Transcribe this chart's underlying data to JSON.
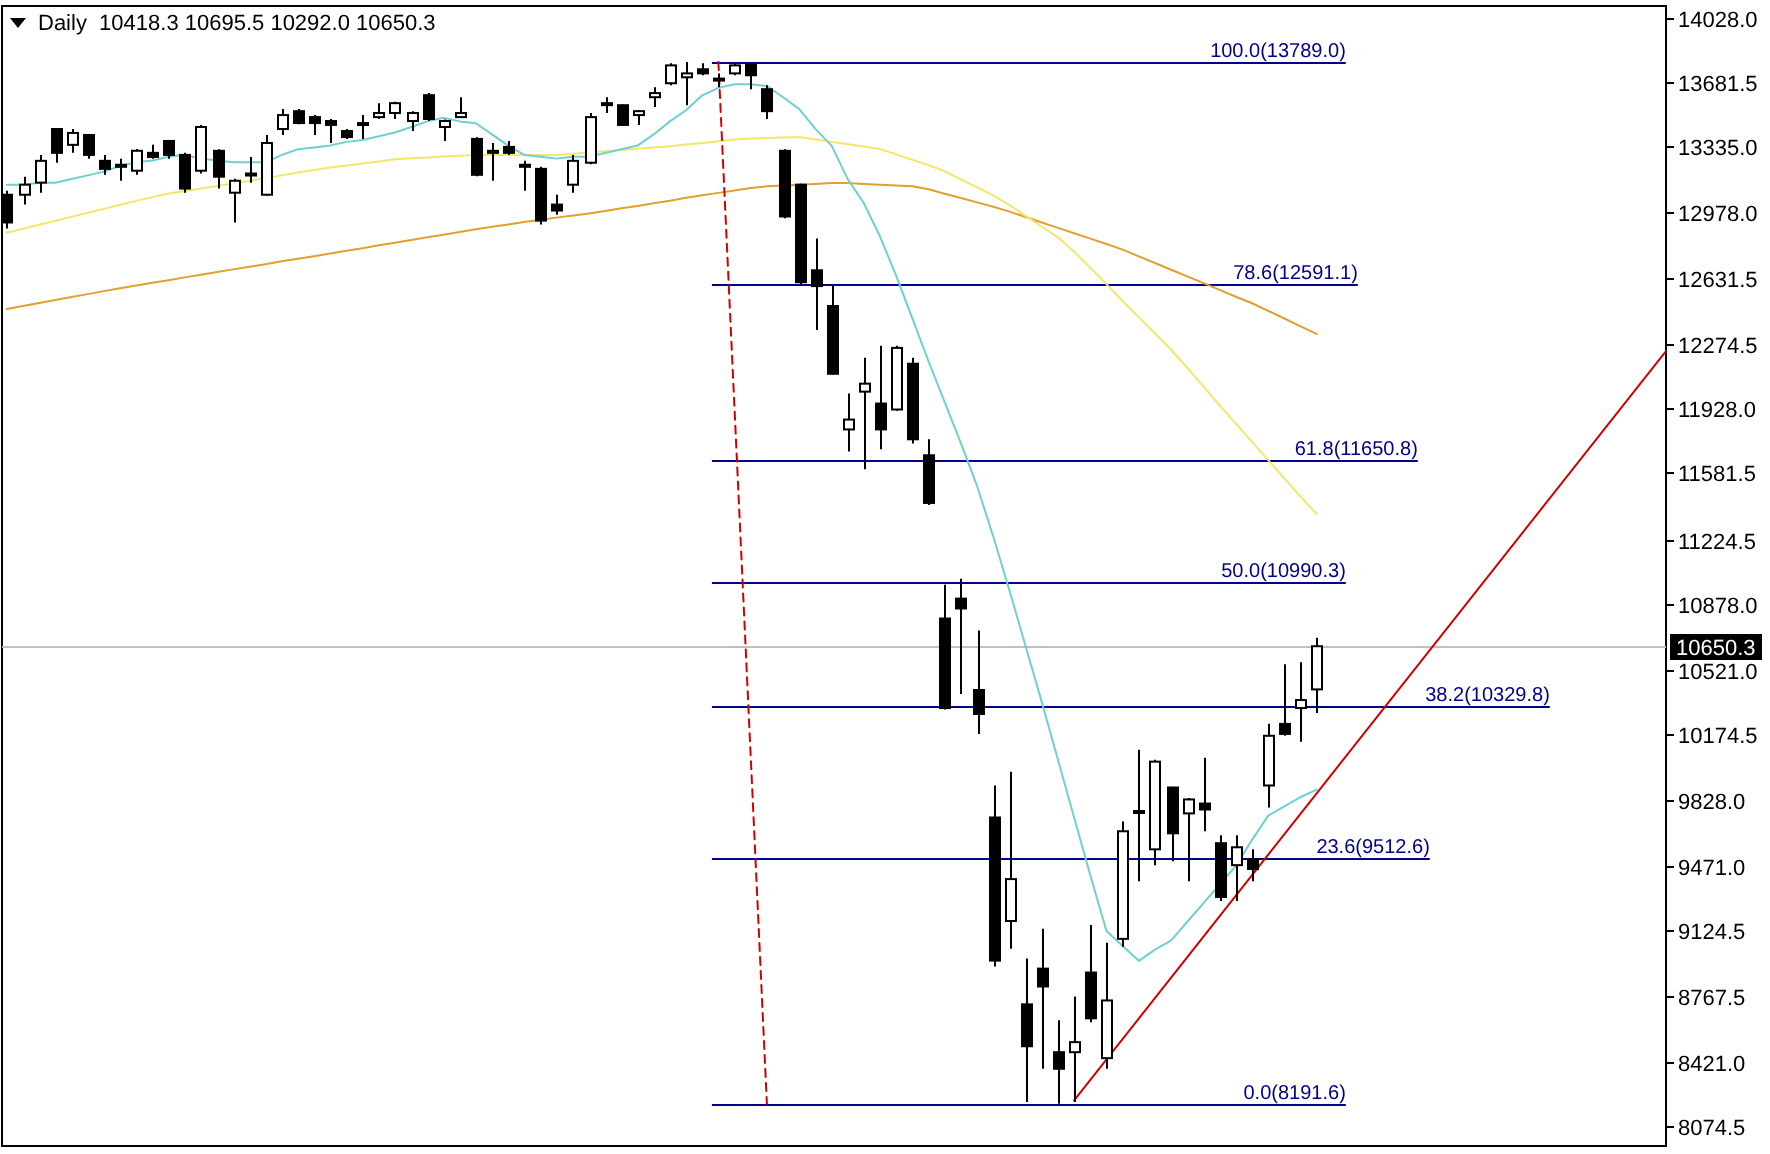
{
  "chart_data": {
    "type": "candlestick",
    "title": "Daily  10418.3 10695.5 10292.0 10650.3",
    "tick_labels": "y",
    "categories": [
      null,
      null,
      null,
      null,
      null,
      null,
      null,
      null,
      null,
      null,
      null,
      null,
      null,
      null,
      null,
      null,
      null,
      null,
      null,
      null,
      null,
      null,
      null,
      null,
      null,
      null,
      null,
      null,
      null,
      null,
      null,
      null,
      null,
      null,
      null,
      null,
      null,
      null,
      null,
      null,
      null,
      null,
      null,
      null,
      null,
      null,
      null,
      null,
      null,
      null,
      null,
      null,
      null,
      null,
      null,
      null,
      null,
      null,
      null,
      null,
      null,
      null,
      null,
      null,
      null,
      null,
      null,
      null,
      null,
      null,
      null,
      null,
      null,
      null,
      null,
      null,
      null,
      null,
      null,
      null,
      null,
      null
    ],
    "ylim": [
      7965,
      14090
    ],
    "yticks": [
      {
        "value": 14028,
        "label": "14028.0"
      },
      {
        "value": 13681.5,
        "label": "13681.5"
      },
      {
        "value": 13335,
        "label": "13335.0"
      },
      {
        "value": 12978,
        "label": "12978.0"
      },
      {
        "value": 12631.5,
        "label": "12631.5"
      },
      {
        "value": 12274.5,
        "label": "12274.5"
      },
      {
        "value": 11928,
        "label": "11928.0"
      },
      {
        "value": 11581.5,
        "label": "11581.5"
      },
      {
        "value": 11224.5,
        "label": "11224.5"
      },
      {
        "value": 10878,
        "label": "10878.0"
      },
      {
        "value": 10521,
        "label": "10521.0"
      },
      {
        "value": 10174.5,
        "label": "10174.5"
      },
      {
        "value": 9828,
        "label": "9828.0"
      },
      {
        "value": 9471,
        "label": "9471.0"
      },
      {
        "value": 9124.5,
        "label": "9124.5"
      },
      {
        "value": 8767.5,
        "label": "8767.5"
      },
      {
        "value": 8421,
        "label": "8421.0"
      },
      {
        "value": 8074.5,
        "label": "8074.5"
      }
    ],
    "ohlc": [
      [
        13076,
        13098,
        12895,
        12927
      ],
      [
        13076,
        13173,
        13023,
        13130
      ],
      [
        13141,
        13290,
        13087,
        13258
      ],
      [
        13429,
        13429,
        13248,
        13301
      ],
      [
        13344,
        13429,
        13301,
        13408
      ],
      [
        13397,
        13397,
        13269,
        13290
      ],
      [
        13258,
        13290,
        13183,
        13215
      ],
      [
        13237,
        13269,
        13151,
        13226
      ],
      [
        13205,
        13322,
        13183,
        13312
      ],
      [
        13301,
        13344,
        13269,
        13279
      ],
      [
        13365,
        13365,
        13269,
        13290
      ],
      [
        13290,
        13301,
        13087,
        13109
      ],
      [
        13205,
        13450,
        13190,
        13440
      ],
      [
        13312,
        13320,
        13109,
        13173
      ],
      [
        13087,
        13162,
        12927,
        13151
      ],
      [
        13183,
        13279,
        13141,
        13190
      ],
      [
        13076,
        13397,
        13070,
        13354
      ],
      [
        13429,
        13536,
        13397,
        13504
      ],
      [
        13525,
        13536,
        13455,
        13461
      ],
      [
        13493,
        13504,
        13397,
        13461
      ],
      [
        13472,
        13483,
        13354,
        13451
      ],
      [
        13418,
        13429,
        13376,
        13386
      ],
      [
        13461,
        13504,
        13376,
        13451
      ],
      [
        13493,
        13568,
        13483,
        13515
      ],
      [
        13515,
        13575,
        13483,
        13568
      ],
      [
        13472,
        13525,
        13418,
        13515
      ],
      [
        13611,
        13622,
        13472,
        13483
      ],
      [
        13440,
        13480,
        13365,
        13472
      ],
      [
        13493,
        13600,
        13490,
        13515
      ],
      [
        13376,
        13385,
        13175,
        13183
      ],
      [
        13301,
        13354,
        13151,
        13312
      ],
      [
        13333,
        13365,
        13290,
        13301
      ],
      [
        13237,
        13258,
        13098,
        13226
      ],
      [
        13215,
        13226,
        12916,
        12937
      ],
      [
        13023,
        13076,
        12969,
        12991
      ],
      [
        13130,
        13290,
        13087,
        13258
      ],
      [
        13248,
        13515,
        13240,
        13493
      ],
      [
        13562,
        13600,
        13515,
        13568
      ],
      [
        13557,
        13560,
        13445,
        13451
      ],
      [
        13504,
        13530,
        13451,
        13525
      ],
      [
        13600,
        13654,
        13547,
        13622
      ],
      [
        13675,
        13782,
        13664,
        13771
      ],
      [
        13707,
        13789,
        13557,
        13728
      ],
      [
        13750,
        13782,
        13718,
        13728
      ],
      [
        13690,
        13728,
        13654,
        13700
      ],
      [
        13728,
        13780,
        13718,
        13771
      ],
      [
        13775,
        13780,
        13643,
        13718
      ],
      [
        13643,
        13664,
        13483,
        13525
      ],
      [
        13312,
        13320,
        12950,
        12959
      ],
      [
        13130,
        13135,
        12595,
        12606
      ],
      [
        12670,
        12841,
        12349,
        12585
      ],
      [
        12478,
        12585,
        12110,
        12114
      ],
      [
        11815,
        12008,
        11697,
        11868
      ],
      [
        12018,
        12200,
        11601,
        12061
      ],
      [
        11954,
        12264,
        11708,
        11815
      ],
      [
        11922,
        12264,
        11915,
        12253
      ],
      [
        12168,
        12200,
        11740,
        11762
      ],
      [
        11676,
        11762,
        11409,
        11420
      ],
      [
        10799,
        10981,
        10310,
        10318
      ],
      [
        10906,
        11013,
        10393,
        10853
      ],
      [
        10415,
        10735,
        10179,
        10286
      ],
      [
        9730,
        9902,
        8929,
        8961
      ],
      [
        9174,
        9976,
        9025,
        9399
      ],
      [
        8726,
        8972,
        8202,
        8501
      ],
      [
        8918,
        9132,
        8380,
        8822
      ],
      [
        8469,
        8640,
        8191.6,
        8380
      ],
      [
        8469,
        8768,
        8202,
        8523
      ],
      [
        8897,
        9153,
        8630,
        8651
      ],
      [
        8437,
        9057,
        8380,
        8747
      ],
      [
        9078,
        9709,
        9036,
        9656
      ],
      [
        9760,
        10094,
        9388,
        9765
      ],
      [
        9559,
        10040,
        9474,
        10030
      ],
      [
        9891,
        9895,
        9495,
        9645
      ],
      [
        9752,
        9835,
        9388,
        9827
      ],
      [
        9805,
        10051,
        9656,
        9773
      ],
      [
        9592,
        9634,
        9281,
        9303
      ],
      [
        9474,
        9634,
        9281,
        9570
      ],
      [
        9506,
        9559,
        9388,
        9453
      ],
      [
        9902,
        10233,
        9784,
        10169
      ],
      [
        10233,
        10553,
        10169,
        10179
      ],
      [
        10318,
        10564,
        10137,
        10361
      ],
      [
        10418.3,
        10695.5,
        10292,
        10650.3
      ]
    ],
    "series": [
      {
        "type": "line",
        "color": "#e0a030",
        "values": [
          12462,
          12478,
          12494,
          12510,
          12526,
          12542,
          12558,
          12574,
          12588,
          12603,
          12617,
          12632,
          12646,
          12661,
          12675,
          12689,
          12703,
          12718,
          12732,
          12746,
          12760,
          12775,
          12789,
          12804,
          12818,
          12833,
          12847,
          12861,
          12876,
          12890,
          12904,
          12916,
          12929,
          12941,
          12953,
          12965,
          12975,
          12989,
          13003,
          13016,
          13030,
          13044,
          13060,
          13073,
          13086,
          13099,
          13112,
          13121,
          13126,
          13130,
          13134,
          13139,
          13139,
          13134,
          13130,
          13125,
          13121,
          13105,
          13081,
          13058,
          13035,
          13011,
          12985,
          12956,
          12927,
          12898,
          12869,
          12840,
          12811,
          12781,
          12745,
          12709,
          12673,
          12637,
          12601,
          12565,
          12528,
          12493,
          12452,
          12411,
          12369,
          12328
        ]
      },
      {
        "type": "line",
        "color": "#f5e66a",
        "values": [
          12872,
          12893,
          12915,
          12936,
          12957,
          12979,
          13000,
          13022,
          13043,
          13063,
          13083,
          13096,
          13110,
          13123,
          13136,
          13150,
          13165,
          13180,
          13195,
          13209,
          13222,
          13233,
          13244,
          13255,
          13266,
          13272,
          13276,
          13281,
          13285,
          13289,
          13290,
          13290,
          13290,
          13290,
          13290,
          13296,
          13303,
          13310,
          13316,
          13323,
          13330,
          13337,
          13346,
          13354,
          13363,
          13373,
          13378,
          13381,
          13383,
          13386,
          13373,
          13360,
          13347,
          13335,
          13322,
          13293,
          13264,
          13235,
          13202,
          13159,
          13116,
          13072,
          13020,
          12962,
          12904,
          12847,
          12770,
          12683,
          12596,
          12504,
          12417,
          12330,
          12243,
          12146,
          12045,
          11944,
          11846,
          11748,
          11650,
          11552,
          11454,
          11360
        ]
      },
      {
        "type": "line",
        "color": "#6fd0d0",
        "values": [
          13130,
          13130,
          13140,
          13140,
          13160,
          13180,
          13200,
          13230,
          13250,
          13260,
          13280,
          13290,
          13270,
          13260,
          13250,
          13250,
          13250,
          13290,
          13320,
          13330,
          13340,
          13360,
          13370,
          13390,
          13410,
          13440,
          13470,
          13490,
          13470,
          13460,
          13400,
          13340,
          13290,
          13280,
          13270,
          13280,
          13280,
          13300,
          13320,
          13340,
          13400,
          13470,
          13530,
          13610,
          13650,
          13670,
          13670,
          13660,
          13600,
          13536,
          13430,
          13340,
          13160,
          13030,
          12850,
          12640,
          12410,
          12180,
          11960,
          11740,
          11510,
          11240,
          10950,
          10650,
          10350,
          10040,
          9730,
          9420,
          9120,
          9040,
          8960,
          9020,
          9070,
          9170,
          9270,
          9370,
          9470,
          9610,
          9740,
          9790,
          9840,
          9880
        ]
      },
      {
        "type": "line",
        "color": "#d00000",
        "values": [
          null,
          null,
          null,
          null,
          null,
          null,
          null,
          null,
          null,
          null,
          null,
          null,
          null,
          null,
          null,
          null,
          null,
          null,
          null,
          null,
          null,
          null,
          null,
          null,
          null,
          null,
          null,
          null,
          null,
          null,
          null,
          null,
          null,
          null,
          null,
          null,
          null,
          null,
          null,
          null,
          null,
          null,
          null,
          null,
          null,
          null,
          null,
          null,
          null,
          null,
          null,
          null,
          null,
          null,
          null,
          null,
          null,
          null,
          null,
          null,
          null,
          null,
          null,
          null,
          null,
          null,
          8210,
          null,
          null,
          null,
          null,
          null,
          null,
          null,
          null,
          null,
          null,
          null,
          null,
          null,
          null,
          9860
        ]
      },
      {
        "type": "line",
        "color": "#d00000",
        "line_style": "dashed",
        "values": [
          null,
          null,
          null,
          null,
          null,
          null,
          null,
          null,
          null,
          null,
          null,
          null,
          null,
          null,
          null,
          null,
          null,
          null,
          null,
          null,
          null,
          null,
          null,
          null,
          null,
          null,
          null,
          null,
          null,
          null,
          null,
          null,
          null,
          null,
          null,
          null,
          null,
          null,
          null,
          null,
          null,
          null,
          null,
          null,
          13789,
          null,
          null,
          8191.6,
          null,
          null,
          null,
          null,
          null,
          null,
          null,
          null,
          null,
          null,
          null,
          null,
          null,
          null,
          null,
          null,
          null,
          null,
          null,
          null,
          null,
          null,
          null,
          null,
          null,
          null,
          null,
          null,
          null,
          null,
          null,
          null,
          null,
          null
        ]
      }
    ],
    "ref_lines": [
      {
        "axis": "y",
        "value": 10650.3,
        "label": "10650.3",
        "color": "#c0c0c0"
      },
      {
        "axis": "y",
        "value": 13789,
        "label": "100.0(13789.0)",
        "color": "#00008b"
      },
      {
        "axis": "y",
        "value": 12591.1,
        "label": "78.6(12591.1)",
        "color": "#00008b"
      },
      {
        "axis": "y",
        "value": 11650.8,
        "label": "61.8(11650.8)",
        "color": "#00008b"
      },
      {
        "axis": "y",
        "value": 10990.3,
        "label": "50.0(10990.3)",
        "color": "#00008b"
      },
      {
        "axis": "y",
        "value": 10329.8,
        "label": "38.2(10329.8)",
        "color": "#00008b"
      },
      {
        "axis": "y",
        "value": 9512.6,
        "label": "23.6(9512.6)",
        "color": "#00008b"
      },
      {
        "axis": "y",
        "value": 8191.6,
        "label": "0.0(8191.6)",
        "color": "#00008b"
      }
    ]
  }
}
